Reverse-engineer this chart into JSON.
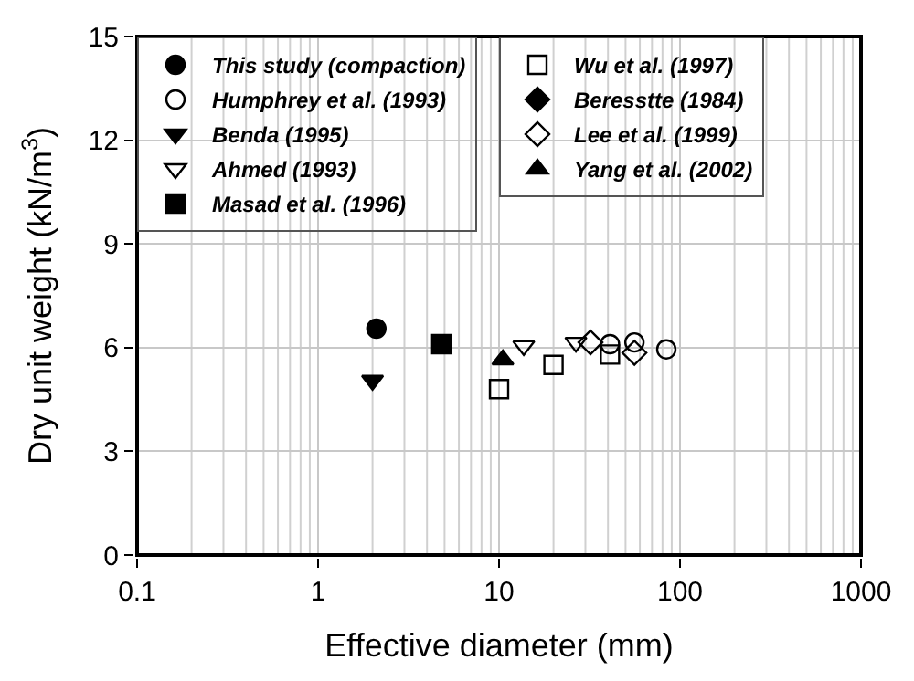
{
  "chart_data": {
    "type": "scatter",
    "xlabel": "Effective diameter (mm)",
    "ylabel": "Dry unit weight (kN/m$^{3}$)",
    "log": "x",
    "xlim": [
      0.1,
      1000
    ],
    "xticks": [
      0.1,
      1,
      10,
      100,
      1000
    ],
    "ylim": [
      0,
      15
    ],
    "yticks": [
      0,
      3,
      6,
      9,
      12,
      15
    ],
    "grid": true,
    "legend": "top",
    "series": [
      {
        "name": "This study (compaction)",
        "marker": "circle",
        "color": "#000000",
        "x": [
          2.1
        ],
        "values": [
          6.55
        ]
      },
      {
        "name": "Humphrey et al. (1993)",
        "marker": "circle-open",
        "color": "#000000",
        "x": [
          41,
          56,
          84
        ],
        "values": [
          6.1,
          6.15,
          5.95
        ]
      },
      {
        "name": "Benda (1995)",
        "marker": "triangle-down",
        "color": "#000000",
        "x": [
          2.0
        ],
        "values": [
          5.05
        ]
      },
      {
        "name": "Ahmed (1993)",
        "marker": "triangle-down-open",
        "color": "#000000",
        "x": [
          13.7,
          26.6
        ],
        "values": [
          6.05,
          6.15
        ]
      },
      {
        "name": "Masad et al. (1996)",
        "marker": "square",
        "color": "#000000",
        "x": [
          4.8
        ],
        "values": [
          6.1
        ]
      },
      {
        "name": "Wu et al. (1997)",
        "marker": "square-open",
        "color": "#000000",
        "x": [
          10,
          20,
          41
        ],
        "values": [
          4.8,
          5.5,
          5.8
        ]
      },
      {
        "name": "Beresstte (1984)",
        "marker": "diamond",
        "color": "#000000",
        "x": [
          null
        ],
        "values": [
          null
        ]
      },
      {
        "name": "Lee et al. (1999)",
        "marker": "diamond-open",
        "color": "#000000",
        "x": [
          32,
          56
        ],
        "values": [
          6.15,
          5.85
        ]
      },
      {
        "name": "Yang et al. (2002)",
        "marker": "triangle",
        "color": "#000000",
        "x": [
          10.5
        ],
        "values": [
          5.65
        ]
      }
    ]
  }
}
